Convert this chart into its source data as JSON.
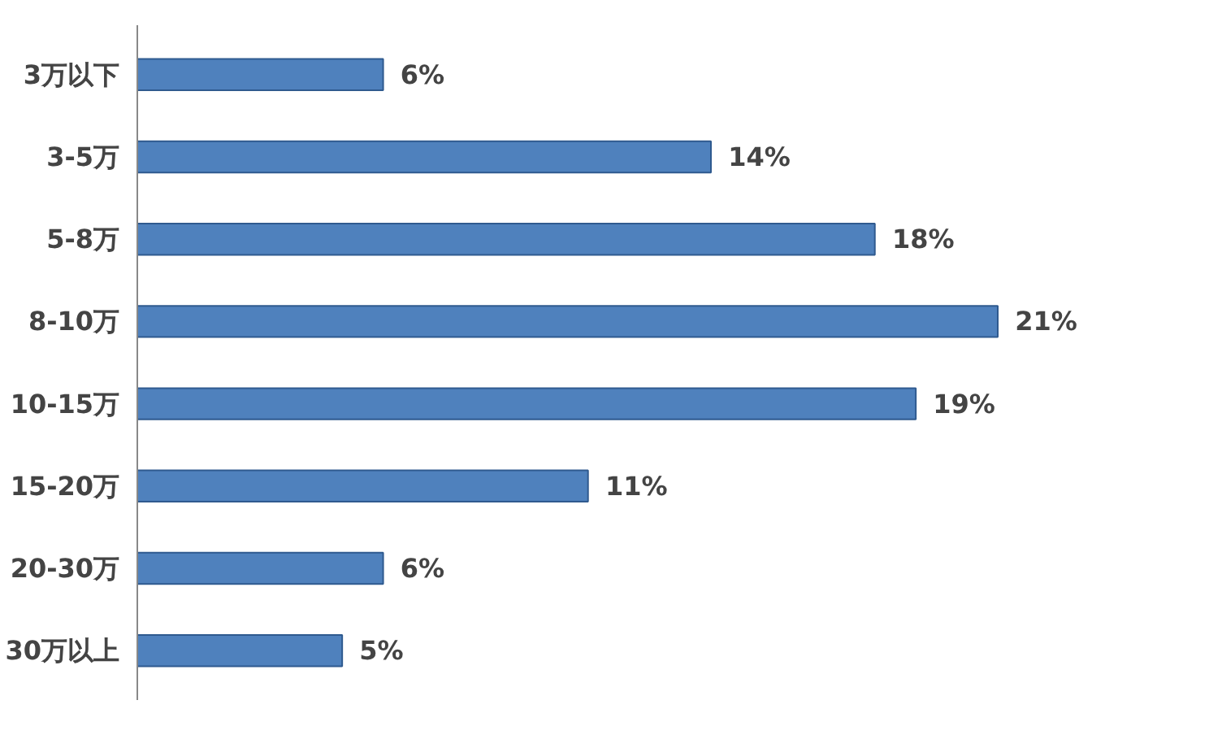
{
  "chart_data": {
    "type": "bar",
    "orientation": "horizontal",
    "categories": [
      "3万以下",
      "3-5万",
      "5-8万",
      "8-10万",
      "10-15万",
      "15-20万",
      "20-30万",
      "30万以上"
    ],
    "values": [
      6,
      14,
      18,
      21,
      19,
      11,
      6,
      5
    ],
    "value_labels": [
      "6%",
      "14%",
      "18%",
      "21%",
      "19%",
      "11%",
      "6%",
      "5%"
    ],
    "color": "#4f81bd"
  }
}
